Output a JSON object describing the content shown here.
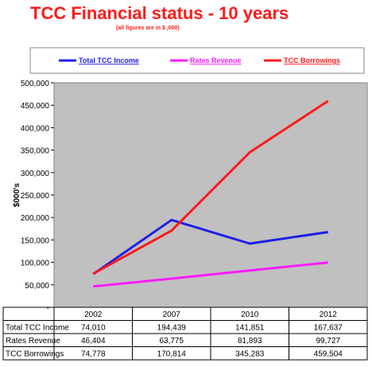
{
  "title": "TCC Financial status - 10 years",
  "subtitle": "(all figures are in $ ,000)",
  "chart_data": {
    "type": "line",
    "title": "TCC Financial status - 10 years",
    "subtitle": "(all figures are in $ ,000)",
    "xlabel": "",
    "ylabel": "$000's",
    "categories": [
      "2002",
      "2007",
      "2010",
      "2012"
    ],
    "ylim": [
      0,
      500000
    ],
    "yticks": [
      0,
      50000,
      100000,
      150000,
      200000,
      250000,
      300000,
      350000,
      400000,
      450000,
      500000
    ],
    "ytick_labels": [
      "-",
      "50,000",
      "100,000",
      "150,000",
      "200,000",
      "250,000",
      "300,000",
      "350,000",
      "400,000",
      "450,000",
      "500,000"
    ],
    "grid": false,
    "legend_position": "top",
    "plot_background": "#c0c0c0",
    "series": [
      {
        "name": "Total TCC Income",
        "color": "#1f1fe6",
        "values": [
          74010,
          194439,
          141851,
          167637
        ],
        "labels": [
          "74,010",
          "194,439",
          "141,851",
          "167,637"
        ]
      },
      {
        "name": "Rates Revenue",
        "color": "#ff1aff",
        "values": [
          46404,
          63775,
          81893,
          99727
        ],
        "labels": [
          "46,404",
          "63,775",
          "81,893",
          "99,727"
        ]
      },
      {
        "name": "TCC Borrowings",
        "color": "#ff1a1a",
        "values": [
          74778,
          170814,
          345283,
          459504
        ],
        "labels": [
          "74,778",
          "170,814",
          "345,283",
          "459,504"
        ]
      }
    ]
  }
}
